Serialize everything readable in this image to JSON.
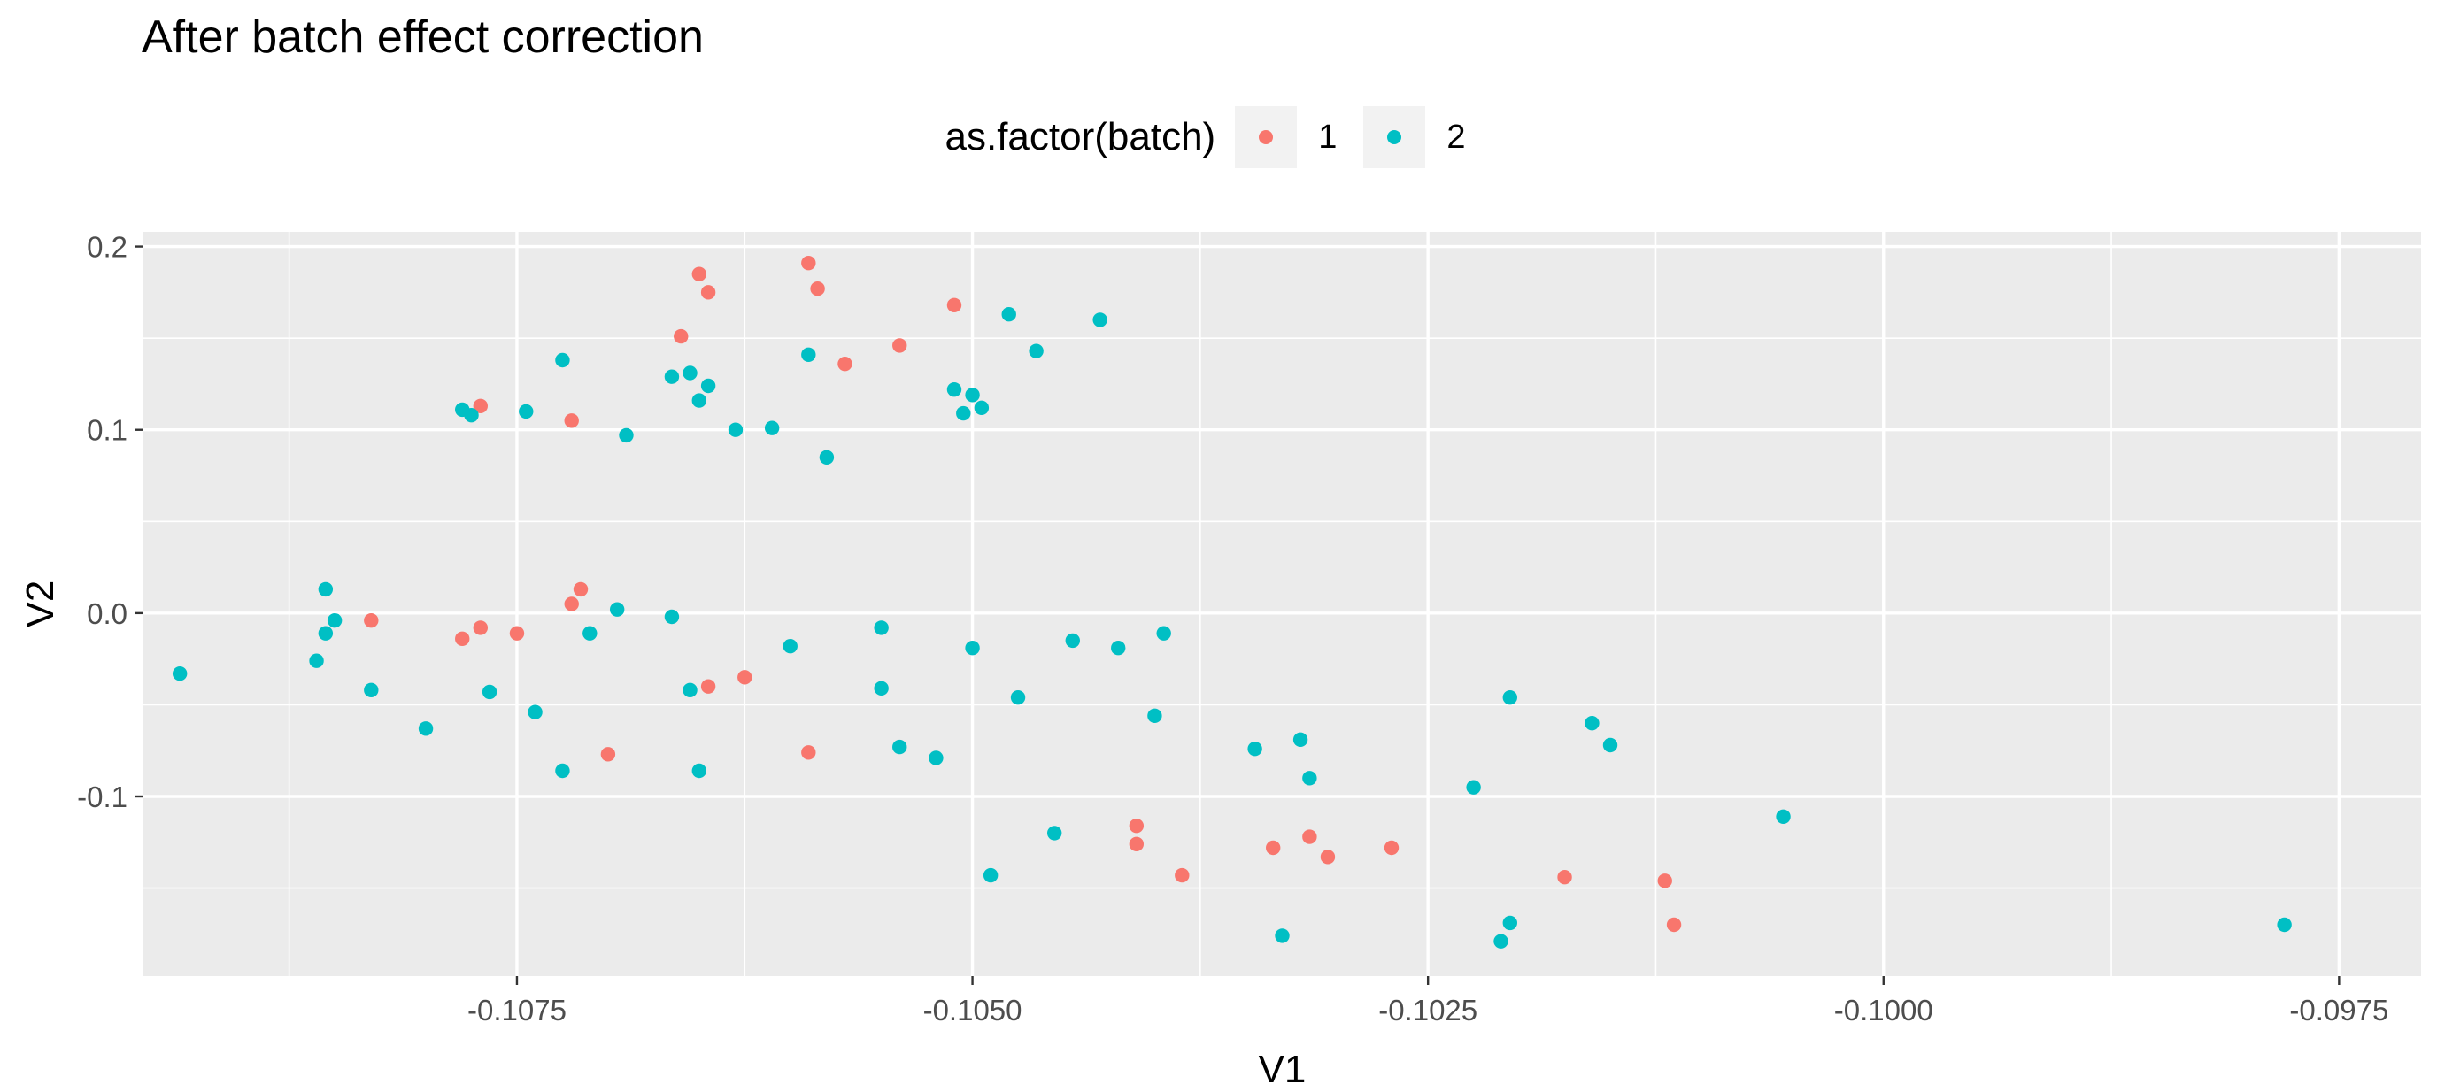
{
  "chart_data": {
    "type": "scatter",
    "title": "After batch effect correction",
    "xlabel": "V1",
    "ylabel": "V2",
    "xlim": [
      -0.10955,
      -0.09705
    ],
    "ylim": [
      -0.198,
      0.208
    ],
    "x_ticks": [
      -0.1075,
      -0.105,
      -0.1025,
      -0.1,
      -0.0975
    ],
    "x_tick_labels": [
      "-0.1075",
      "-0.1050",
      "-0.1025",
      "-0.1000",
      "-0.0975"
    ],
    "y_ticks": [
      -0.1,
      0.0,
      0.1,
      0.2
    ],
    "y_tick_labels": [
      "-0.1",
      "0.0",
      "0.1",
      "0.2"
    ],
    "grid": true,
    "legend": {
      "title": "as.factor(batch)",
      "position": "top",
      "entries": [
        {
          "label": "1",
          "color": "#F8766D"
        },
        {
          "label": "2",
          "color": "#00BFC4"
        }
      ]
    },
    "series": [
      {
        "name": "1",
        "color": "#F8766D",
        "points": [
          [
            -0.1059,
            0.191
          ],
          [
            -0.1065,
            0.185
          ],
          [
            -0.10585,
            0.177
          ],
          [
            -0.10645,
            0.175
          ],
          [
            -0.1051,
            0.168
          ],
          [
            -0.1066,
            0.151
          ],
          [
            -0.1054,
            0.146
          ],
          [
            -0.1057,
            0.136
          ],
          [
            -0.1077,
            0.113
          ],
          [
            -0.1072,
            0.105
          ],
          [
            -0.10715,
            0.013
          ],
          [
            -0.1072,
            0.005
          ],
          [
            -0.1083,
            -0.004
          ],
          [
            -0.1077,
            -0.008
          ],
          [
            -0.1075,
            -0.011
          ],
          [
            -0.1078,
            -0.014
          ],
          [
            -0.10645,
            -0.04
          ],
          [
            -0.10625,
            -0.035
          ],
          [
            -0.107,
            -0.077
          ],
          [
            -0.1059,
            -0.076
          ],
          [
            -0.1041,
            -0.116
          ],
          [
            -0.1041,
            -0.126
          ],
          [
            -0.10385,
            -0.143
          ],
          [
            -0.10335,
            -0.128
          ],
          [
            -0.10315,
            -0.122
          ],
          [
            -0.10305,
            -0.133
          ],
          [
            -0.1027,
            -0.128
          ],
          [
            -0.10175,
            -0.144
          ],
          [
            -0.1012,
            -0.146
          ],
          [
            -0.10115,
            -0.17
          ]
        ]
      },
      {
        "name": "2",
        "color": "#00BFC4",
        "points": [
          [
            -0.1048,
            0.163
          ],
          [
            -0.1043,
            0.16
          ],
          [
            -0.10465,
            0.143
          ],
          [
            -0.1059,
            0.141
          ],
          [
            -0.10725,
            0.138
          ],
          [
            -0.10665,
            0.129
          ],
          [
            -0.10655,
            0.131
          ],
          [
            -0.10645,
            0.124
          ],
          [
            -0.1051,
            0.122
          ],
          [
            -0.105,
            0.119
          ],
          [
            -0.1065,
            0.116
          ],
          [
            -0.10495,
            0.112
          ],
          [
            -0.10505,
            0.109
          ],
          [
            -0.1078,
            0.111
          ],
          [
            -0.10745,
            0.11
          ],
          [
            -0.10775,
            0.108
          ],
          [
            -0.1061,
            0.101
          ],
          [
            -0.1063,
            0.1
          ],
          [
            -0.1069,
            0.097
          ],
          [
            -0.1058,
            0.085
          ],
          [
            -0.10855,
            0.013
          ],
          [
            -0.10695,
            0.002
          ],
          [
            -0.1085,
            -0.004
          ],
          [
            -0.10665,
            -0.002
          ],
          [
            -0.1055,
            -0.008
          ],
          [
            -0.10855,
            -0.011
          ],
          [
            -0.1071,
            -0.011
          ],
          [
            -0.10395,
            -0.011
          ],
          [
            -0.10445,
            -0.015
          ],
          [
            -0.106,
            -0.018
          ],
          [
            -0.105,
            -0.019
          ],
          [
            -0.1042,
            -0.019
          ],
          [
            -0.1086,
            -0.026
          ],
          [
            -0.10935,
            -0.033
          ],
          [
            -0.1055,
            -0.041
          ],
          [
            -0.1083,
            -0.042
          ],
          [
            -0.10765,
            -0.043
          ],
          [
            -0.10655,
            -0.042
          ],
          [
            -0.10475,
            -0.046
          ],
          [
            -0.10205,
            -0.046
          ],
          [
            -0.1074,
            -0.054
          ],
          [
            -0.104,
            -0.056
          ],
          [
            -0.1016,
            -0.06
          ],
          [
            -0.108,
            -0.063
          ],
          [
            -0.1032,
            -0.069
          ],
          [
            -0.1054,
            -0.073
          ],
          [
            -0.1015,
            -0.072
          ],
          [
            -0.10345,
            -0.074
          ],
          [
            -0.1052,
            -0.079
          ],
          [
            -0.10725,
            -0.086
          ],
          [
            -0.1065,
            -0.086
          ],
          [
            -0.10315,
            -0.09
          ],
          [
            -0.10225,
            -0.095
          ],
          [
            -0.10055,
            -0.111
          ],
          [
            -0.10455,
            -0.12
          ],
          [
            -0.1049,
            -0.143
          ],
          [
            -0.1033,
            -0.176
          ],
          [
            -0.1021,
            -0.179
          ],
          [
            -0.10205,
            -0.169
          ],
          [
            -0.0978,
            -0.17
          ]
        ]
      }
    ]
  }
}
